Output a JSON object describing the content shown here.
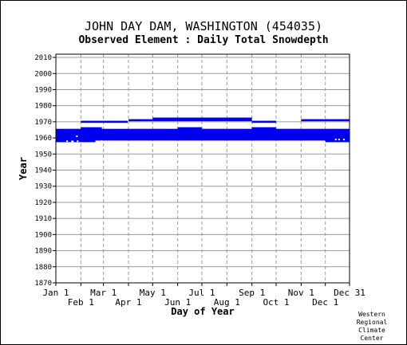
{
  "chart_data": {
    "type": "bar",
    "title": "JOHN DAY DAM, WASHINGTON   (454035)",
    "subtitle": "Observed Element : Daily Total Snowdepth",
    "xlabel": "Day of Year",
    "ylabel": "Year",
    "xlim": [
      1,
      365
    ],
    "ylim": [
      1870,
      2012
    ],
    "yticks": [
      1870,
      1880,
      1890,
      1900,
      1910,
      1920,
      1930,
      1940,
      1950,
      1960,
      1970,
      1980,
      1990,
      2000,
      2010
    ],
    "xticks_upper": [
      {
        "label": "Jan 1",
        "day": 1
      },
      {
        "label": "Mar 1",
        "day": 60
      },
      {
        "label": "May 1",
        "day": 121
      },
      {
        "label": "Jul 1",
        "day": 182
      },
      {
        "label": "Sep 1",
        "day": 244
      },
      {
        "label": "Nov 1",
        "day": 305
      },
      {
        "label": "Dec 31",
        "day": 365
      }
    ],
    "xticks_lower": [
      {
        "label": "Feb 1",
        "day": 32
      },
      {
        "label": "Apr 1",
        "day": 91
      },
      {
        "label": "Jun 1",
        "day": 152
      },
      {
        "label": "Aug 1",
        "day": 213
      },
      {
        "label": "Oct 1",
        "day": 274
      },
      {
        "label": "Dec 1",
        "day": 335
      }
    ],
    "grid": true,
    "color": "#0000ee",
    "bars": [
      {
        "year": 1958,
        "start": 1,
        "end": 20
      },
      {
        "year": 1958,
        "start": 23,
        "end": 50
      },
      {
        "year": 1958,
        "start": 335,
        "end": 365
      },
      {
        "year": 1959,
        "start": 1,
        "end": 365
      },
      {
        "year": 1960,
        "start": 1,
        "end": 365
      },
      {
        "year": 1961,
        "start": 1,
        "end": 365
      },
      {
        "year": 1962,
        "start": 1,
        "end": 365
      },
      {
        "year": 1963,
        "start": 1,
        "end": 365
      },
      {
        "year": 1964,
        "start": 1,
        "end": 365
      },
      {
        "year": 1965,
        "start": 1,
        "end": 365
      },
      {
        "year": 1966,
        "start": 32,
        "end": 58
      },
      {
        "year": 1966,
        "start": 152,
        "end": 182
      },
      {
        "year": 1966,
        "start": 244,
        "end": 274
      },
      {
        "year": 1970,
        "start": 32,
        "end": 90
      },
      {
        "year": 1970,
        "start": 244,
        "end": 274
      },
      {
        "year": 1971,
        "start": 91,
        "end": 121
      },
      {
        "year": 1971,
        "start": 121,
        "end": 244
      },
      {
        "year": 1971,
        "start": 305,
        "end": 365
      },
      {
        "year": 1972,
        "start": 121,
        "end": 244
      }
    ],
    "white_marks": [
      {
        "year": 1958,
        "day": 15
      },
      {
        "year": 1958,
        "day": 28
      },
      {
        "year": 1958,
        "day": 58
      },
      {
        "year": 1959,
        "day": 348
      },
      {
        "year": 1959,
        "day": 352
      },
      {
        "year": 1959,
        "day": 358
      },
      {
        "year": 1961,
        "day": 27
      }
    ]
  },
  "credit": [
    "Western",
    "Regional",
    "Climate",
    "Center"
  ]
}
